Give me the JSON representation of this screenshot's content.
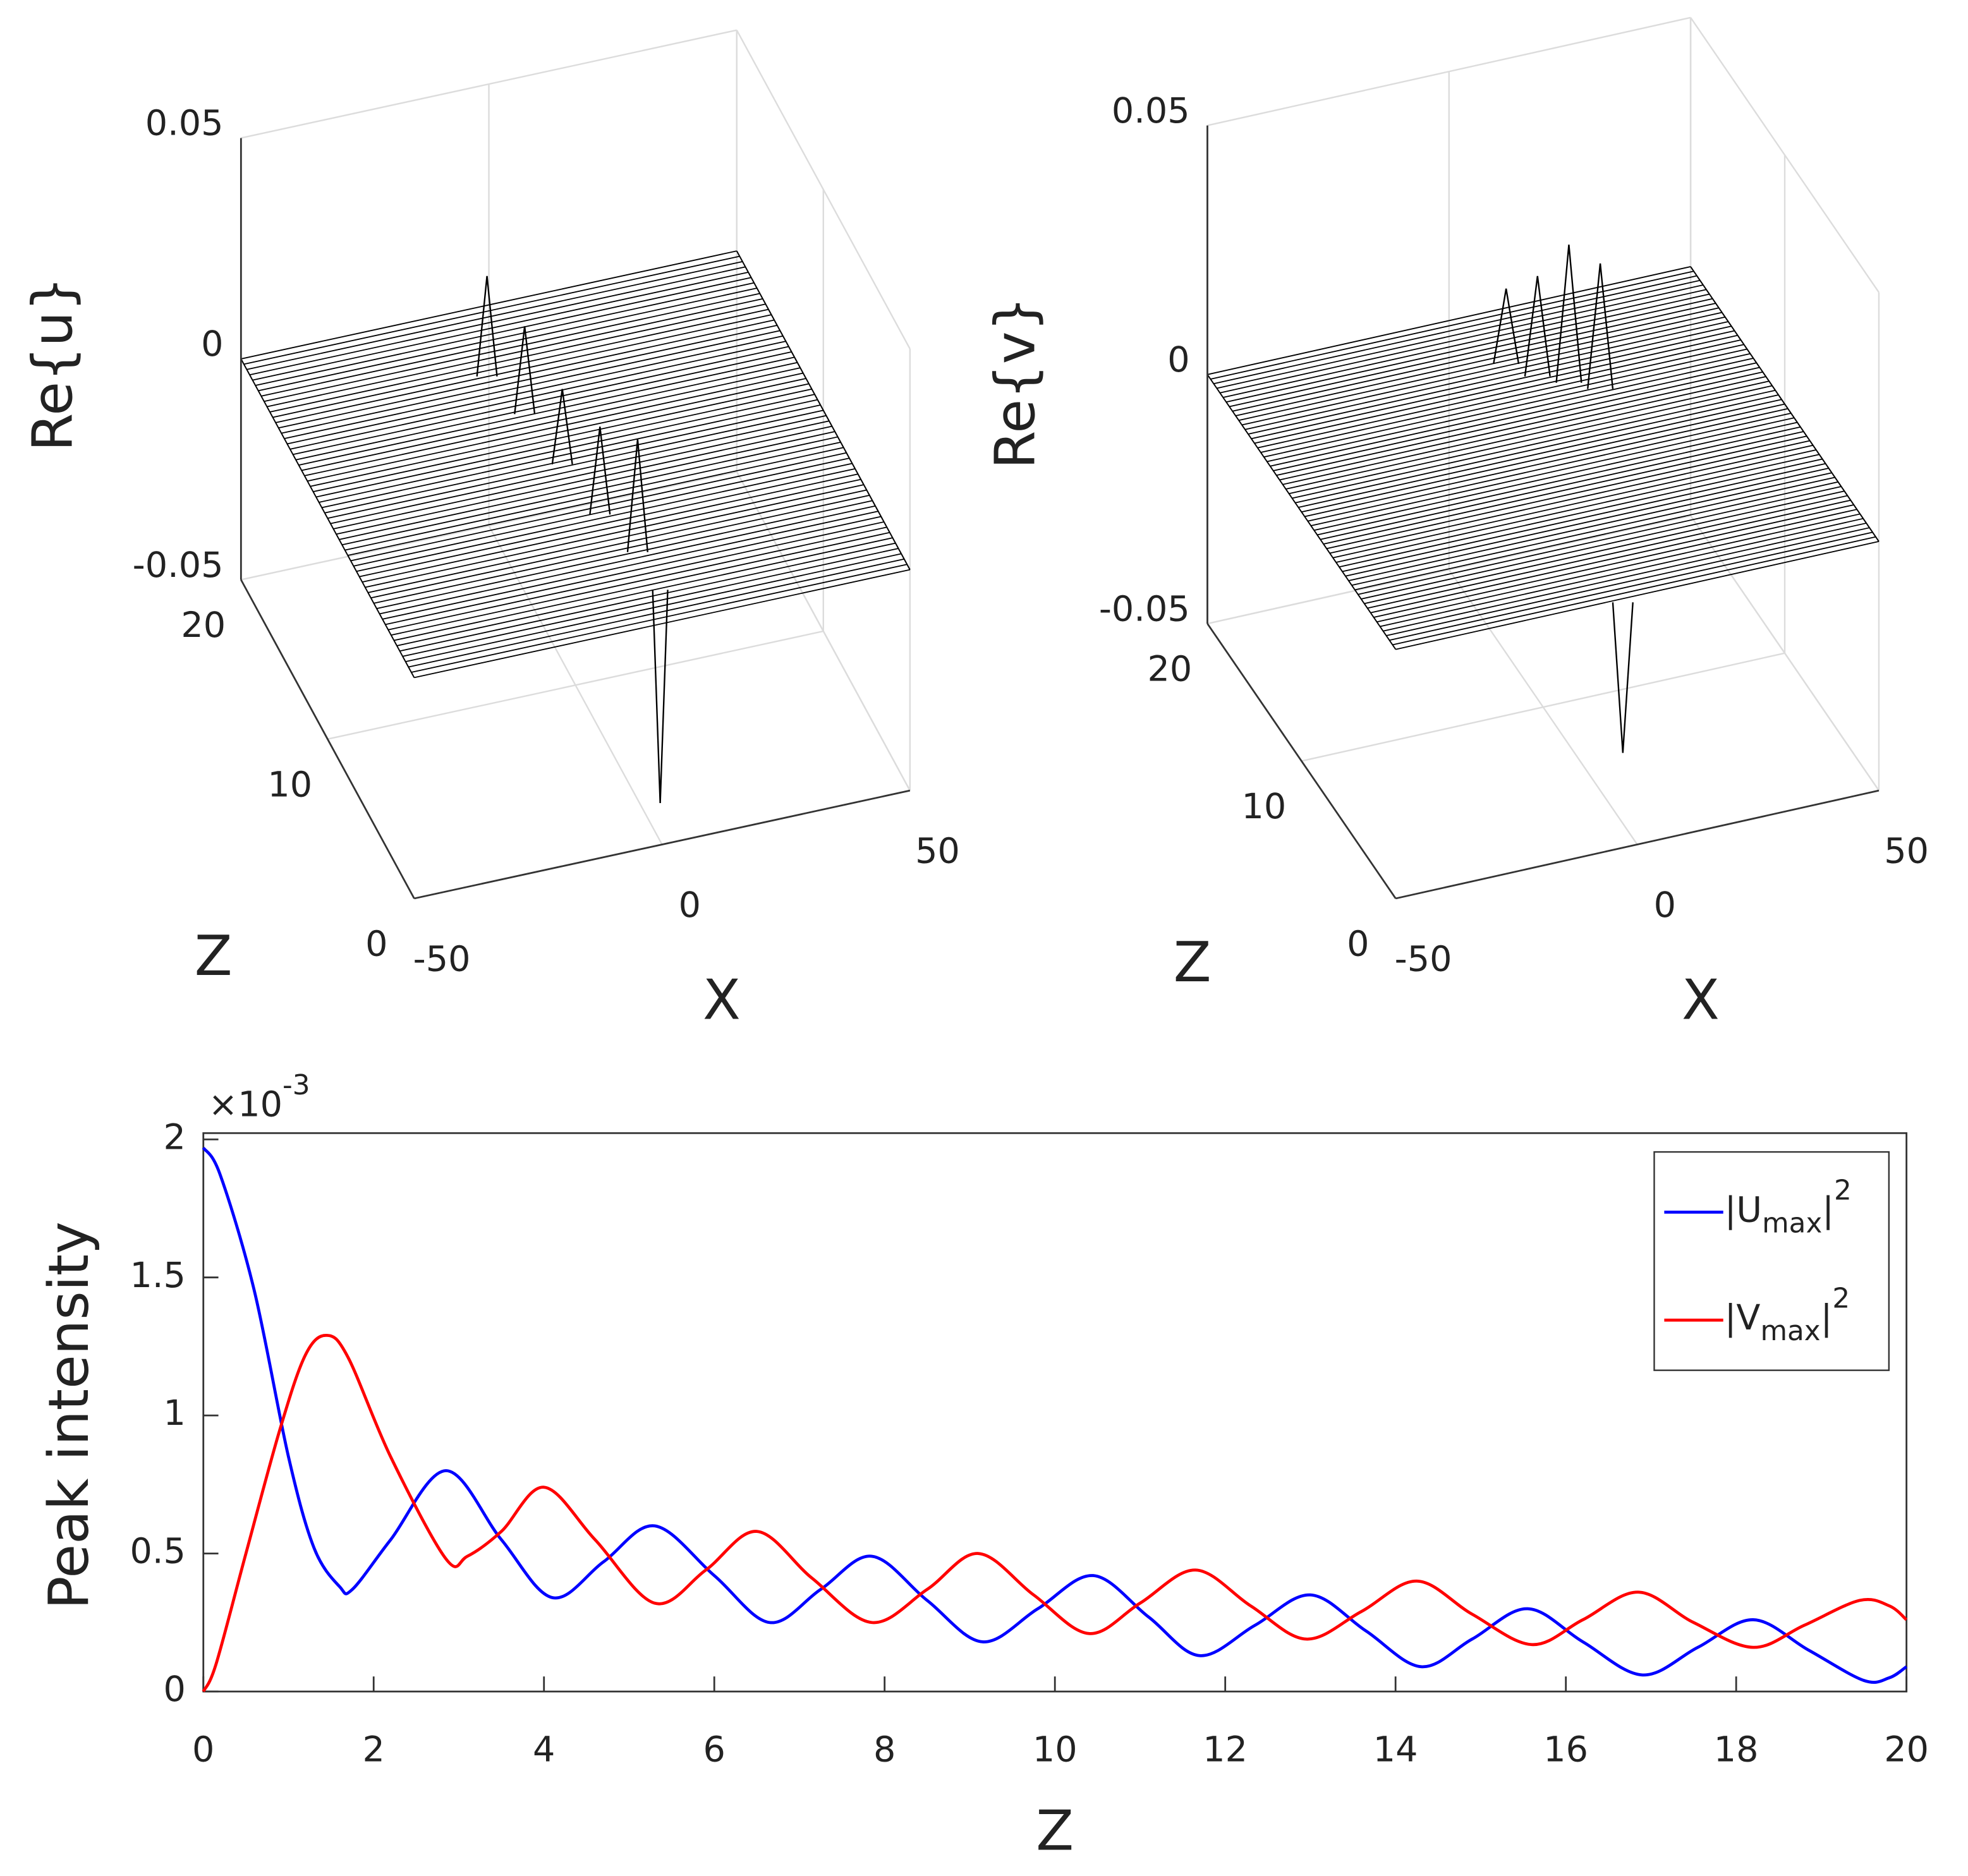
{
  "chart_data": [
    {
      "type": "surface3d",
      "zlabel": "Re{u}",
      "xlabel": "X",
      "ylabel": "Z",
      "xlim": [
        -50,
        50
      ],
      "xticks": [
        -50,
        0,
        50
      ],
      "ylim": [
        0,
        20
      ],
      "yticks": [
        0,
        10,
        20
      ],
      "zlim": [
        -0.05,
        0.05
      ],
      "zticks": [
        -0.05,
        0,
        0.05
      ],
      "grid": true,
      "color": "#000000"
    },
    {
      "type": "surface3d",
      "zlabel": "Re{v}",
      "xlabel": "X",
      "ylabel": "Z",
      "xlim": [
        -50,
        50
      ],
      "xticks": [
        -50,
        0,
        50
      ],
      "ylim": [
        0,
        20
      ],
      "yticks": [
        0,
        10,
        20
      ],
      "zlim": [
        -0.05,
        0.05
      ],
      "zticks": [
        -0.05,
        0,
        0.05
      ],
      "grid": true,
      "color": "#000000"
    },
    {
      "type": "line",
      "xlabel": "Z",
      "ylabel": "Peak intensity",
      "yscale_label": "×10^-3",
      "xlim": [
        0,
        20
      ],
      "xticks": [
        0,
        2,
        4,
        6,
        8,
        10,
        12,
        14,
        16,
        18,
        20
      ],
      "ylim": [
        0,
        2
      ],
      "yticks": [
        0,
        0.5,
        1,
        1.5,
        2
      ],
      "legend": "upper right",
      "series": [
        {
          "name": "|U_max|^2",
          "color": "#0000ff",
          "x": [
            0,
            0.2,
            0.6,
            1.0,
            1.3,
            1.6,
            1.75,
            2.2,
            2.85,
            3.5,
            4.1,
            4.7,
            5.3,
            6.0,
            6.65,
            7.25,
            7.85,
            8.5,
            9.15,
            9.8,
            10.45,
            11.1,
            11.7,
            12.35,
            13.0,
            13.65,
            14.3,
            14.9,
            15.55,
            16.2,
            16.9,
            17.55,
            18.2,
            18.85,
            19.5,
            19.8,
            20
          ],
          "values": [
            1.97,
            1.87,
            1.45,
            0.85,
            0.52,
            0.38,
            0.37,
            0.55,
            0.8,
            0.55,
            0.34,
            0.47,
            0.6,
            0.42,
            0.25,
            0.37,
            0.49,
            0.33,
            0.18,
            0.3,
            0.42,
            0.27,
            0.13,
            0.24,
            0.35,
            0.22,
            0.09,
            0.19,
            0.3,
            0.18,
            0.06,
            0.16,
            0.26,
            0.15,
            0.04,
            0.05,
            0.09
          ]
        },
        {
          "name": "|V_max|^2",
          "color": "#ff0000",
          "x": [
            0,
            0.15,
            0.5,
            0.9,
            1.2,
            1.45,
            1.7,
            2.2,
            2.85,
            3.1,
            3.5,
            4.0,
            4.6,
            5.3,
            5.9,
            6.5,
            7.15,
            7.85,
            8.5,
            9.1,
            9.75,
            10.4,
            11.0,
            11.65,
            12.3,
            12.95,
            13.6,
            14.25,
            14.9,
            15.6,
            16.2,
            16.85,
            17.5,
            18.2,
            18.8,
            19.45,
            19.8,
            20
          ],
          "values": [
            0,
            0.1,
            0.5,
            0.95,
            1.22,
            1.29,
            1.21,
            0.85,
            0.48,
            0.49,
            0.58,
            0.74,
            0.55,
            0.32,
            0.44,
            0.58,
            0.41,
            0.25,
            0.37,
            0.5,
            0.35,
            0.21,
            0.32,
            0.44,
            0.31,
            0.19,
            0.29,
            0.4,
            0.28,
            0.17,
            0.26,
            0.36,
            0.25,
            0.16,
            0.24,
            0.33,
            0.31,
            0.26
          ]
        }
      ]
    }
  ]
}
